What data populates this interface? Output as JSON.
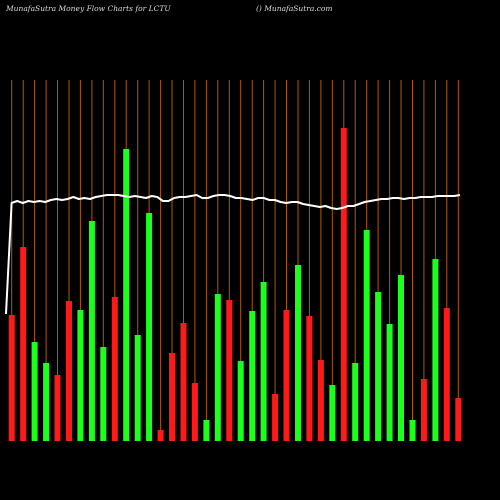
{
  "header": {
    "title_left": "MunafaSutra  Money Flow  Charts for LCTU",
    "title_right": "() MunafaSutra.com"
  },
  "colors": {
    "background": "#000000",
    "up_bar": "#1dff1d",
    "down_bar": "#ff1a1a",
    "grid": "#b05a00",
    "line": "#ffffff"
  },
  "chart_data": {
    "type": "bar",
    "grid": true,
    "bars": [
      {
        "dir": "down",
        "value": 126
      },
      {
        "dir": "down",
        "value": 194
      },
      {
        "dir": "up",
        "value": 99
      },
      {
        "dir": "up",
        "value": 78
      },
      {
        "dir": "down",
        "value": 66
      },
      {
        "dir": "down",
        "value": 140
      },
      {
        "dir": "up",
        "value": 131
      },
      {
        "dir": "up",
        "value": 220
      },
      {
        "dir": "up",
        "value": 94
      },
      {
        "dir": "down",
        "value": 144
      },
      {
        "dir": "up",
        "value": 292
      },
      {
        "dir": "up",
        "value": 106
      },
      {
        "dir": "up",
        "value": 228
      },
      {
        "dir": "down",
        "value": 11
      },
      {
        "dir": "down",
        "value": 88
      },
      {
        "dir": "down",
        "value": 118
      },
      {
        "dir": "down",
        "value": 58
      },
      {
        "dir": "up",
        "value": 21
      },
      {
        "dir": "up",
        "value": 147
      },
      {
        "dir": "down",
        "value": 141
      },
      {
        "dir": "up",
        "value": 80
      },
      {
        "dir": "up",
        "value": 130
      },
      {
        "dir": "up",
        "value": 159
      },
      {
        "dir": "down",
        "value": 47
      },
      {
        "dir": "down",
        "value": 131
      },
      {
        "dir": "up",
        "value": 176
      },
      {
        "dir": "down",
        "value": 125
      },
      {
        "dir": "down",
        "value": 81
      },
      {
        "dir": "up",
        "value": 56
      },
      {
        "dir": "down",
        "value": 313
      },
      {
        "dir": "up",
        "value": 78
      },
      {
        "dir": "up",
        "value": 211
      },
      {
        "dir": "up",
        "value": 149
      },
      {
        "dir": "up",
        "value": 117
      },
      {
        "dir": "up",
        "value": 166
      },
      {
        "dir": "up",
        "value": 21
      },
      {
        "dir": "down",
        "value": 62
      },
      {
        "dir": "up",
        "value": 182
      },
      {
        "dir": "down",
        "value": 133
      },
      {
        "dir": "down",
        "value": 43
      }
    ],
    "line": [
      127,
      238,
      240,
      238,
      240,
      239,
      240,
      239,
      241,
      242,
      241,
      242,
      244,
      242,
      243,
      242,
      244,
      245,
      246,
      246,
      246,
      245,
      244,
      245,
      244,
      243,
      245,
      244,
      240,
      240,
      243,
      244,
      244,
      245,
      246,
      243,
      243,
      245,
      246,
      246,
      245,
      243,
      243,
      242,
      241,
      243,
      243,
      241,
      241,
      239,
      238,
      239,
      239,
      237,
      236,
      235,
      234,
      235,
      233,
      232,
      233,
      235,
      235,
      237,
      239,
      240,
      241,
      242,
      242,
      243,
      243,
      242,
      243,
      243,
      244,
      244,
      244,
      245,
      245,
      245,
      245,
      246
    ]
  }
}
